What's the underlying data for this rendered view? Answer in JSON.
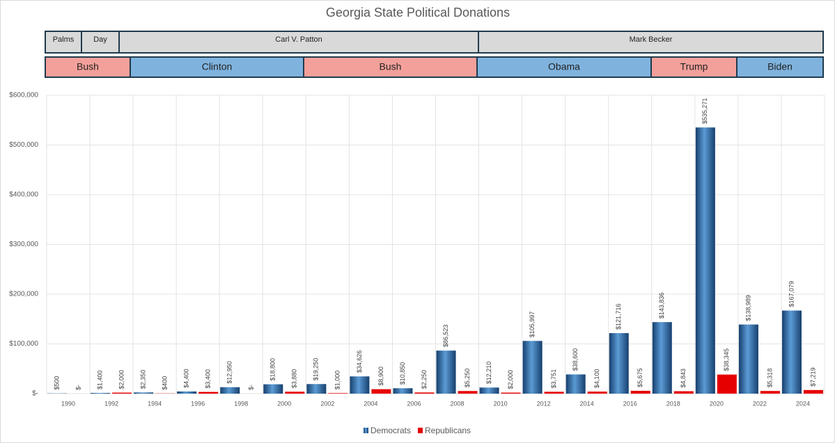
{
  "chart_data": {
    "type": "bar",
    "title": "Georgia State Political Donations",
    "chancellors": [
      "Palms",
      "Day",
      "Carl V. Patton",
      "Mark Becker"
    ],
    "presidents": [
      "Bush",
      "Clinton",
      "Bush",
      "Obama",
      "Trump",
      "Biden"
    ],
    "categories": [
      "1990",
      "1992",
      "1994",
      "1996",
      "1998",
      "2000",
      "2002",
      "2004",
      "2006",
      "2008",
      "2010",
      "2012",
      "2014",
      "2016",
      "2018",
      "2020",
      "2022",
      "2024"
    ],
    "series": [
      {
        "name": "Democrats",
        "color": "#2e6db4",
        "values": [
          500,
          1400,
          2350,
          4400,
          12950,
          18800,
          19250,
          34626,
          10850,
          86523,
          12210,
          105997,
          38600,
          121716,
          143836,
          535271,
          138989,
          167079
        ],
        "value_labels": [
          "$500",
          "$1,400",
          "$2,350",
          "$4,400",
          "$12,950",
          "$18,800",
          "$19,250",
          "$34,626",
          "$10,850",
          "$86,523",
          "$12,210",
          "$105,997",
          "$38,600",
          "$121,716",
          "$143,836",
          "$535,271",
          "$138,989",
          "$167,079"
        ]
      },
      {
        "name": "Republicans",
        "color": "#e60000",
        "values": [
          0,
          2000,
          400,
          3400,
          0,
          3880,
          1000,
          8900,
          2250,
          5250,
          2000,
          3751,
          4100,
          5675,
          4843,
          38345,
          5318,
          7219
        ],
        "value_labels": [
          "$-",
          "$2,000",
          "$400",
          "$3,400",
          "$-",
          "$3,880",
          "$1,000",
          "$8,900",
          "$2,250",
          "$5,250",
          "$2,000",
          "$3,751",
          "$4,100",
          "$5,675",
          "$4,843",
          "$38,345",
          "$5,318",
          "$7,219"
        ]
      }
    ],
    "ylim": [
      0,
      600000
    ],
    "yticks": [
      {
        "value": 0,
        "label": "$-"
      },
      {
        "value": 100000,
        "label": "$100,000"
      },
      {
        "value": 200000,
        "label": "$200,000"
      },
      {
        "value": 300000,
        "label": "$300,000"
      },
      {
        "value": 400000,
        "label": "$400,000"
      },
      {
        "value": 500000,
        "label": "$500,000"
      },
      {
        "value": 600000,
        "label": "$600,000"
      }
    ],
    "grid": true,
    "legend": "bottom"
  }
}
